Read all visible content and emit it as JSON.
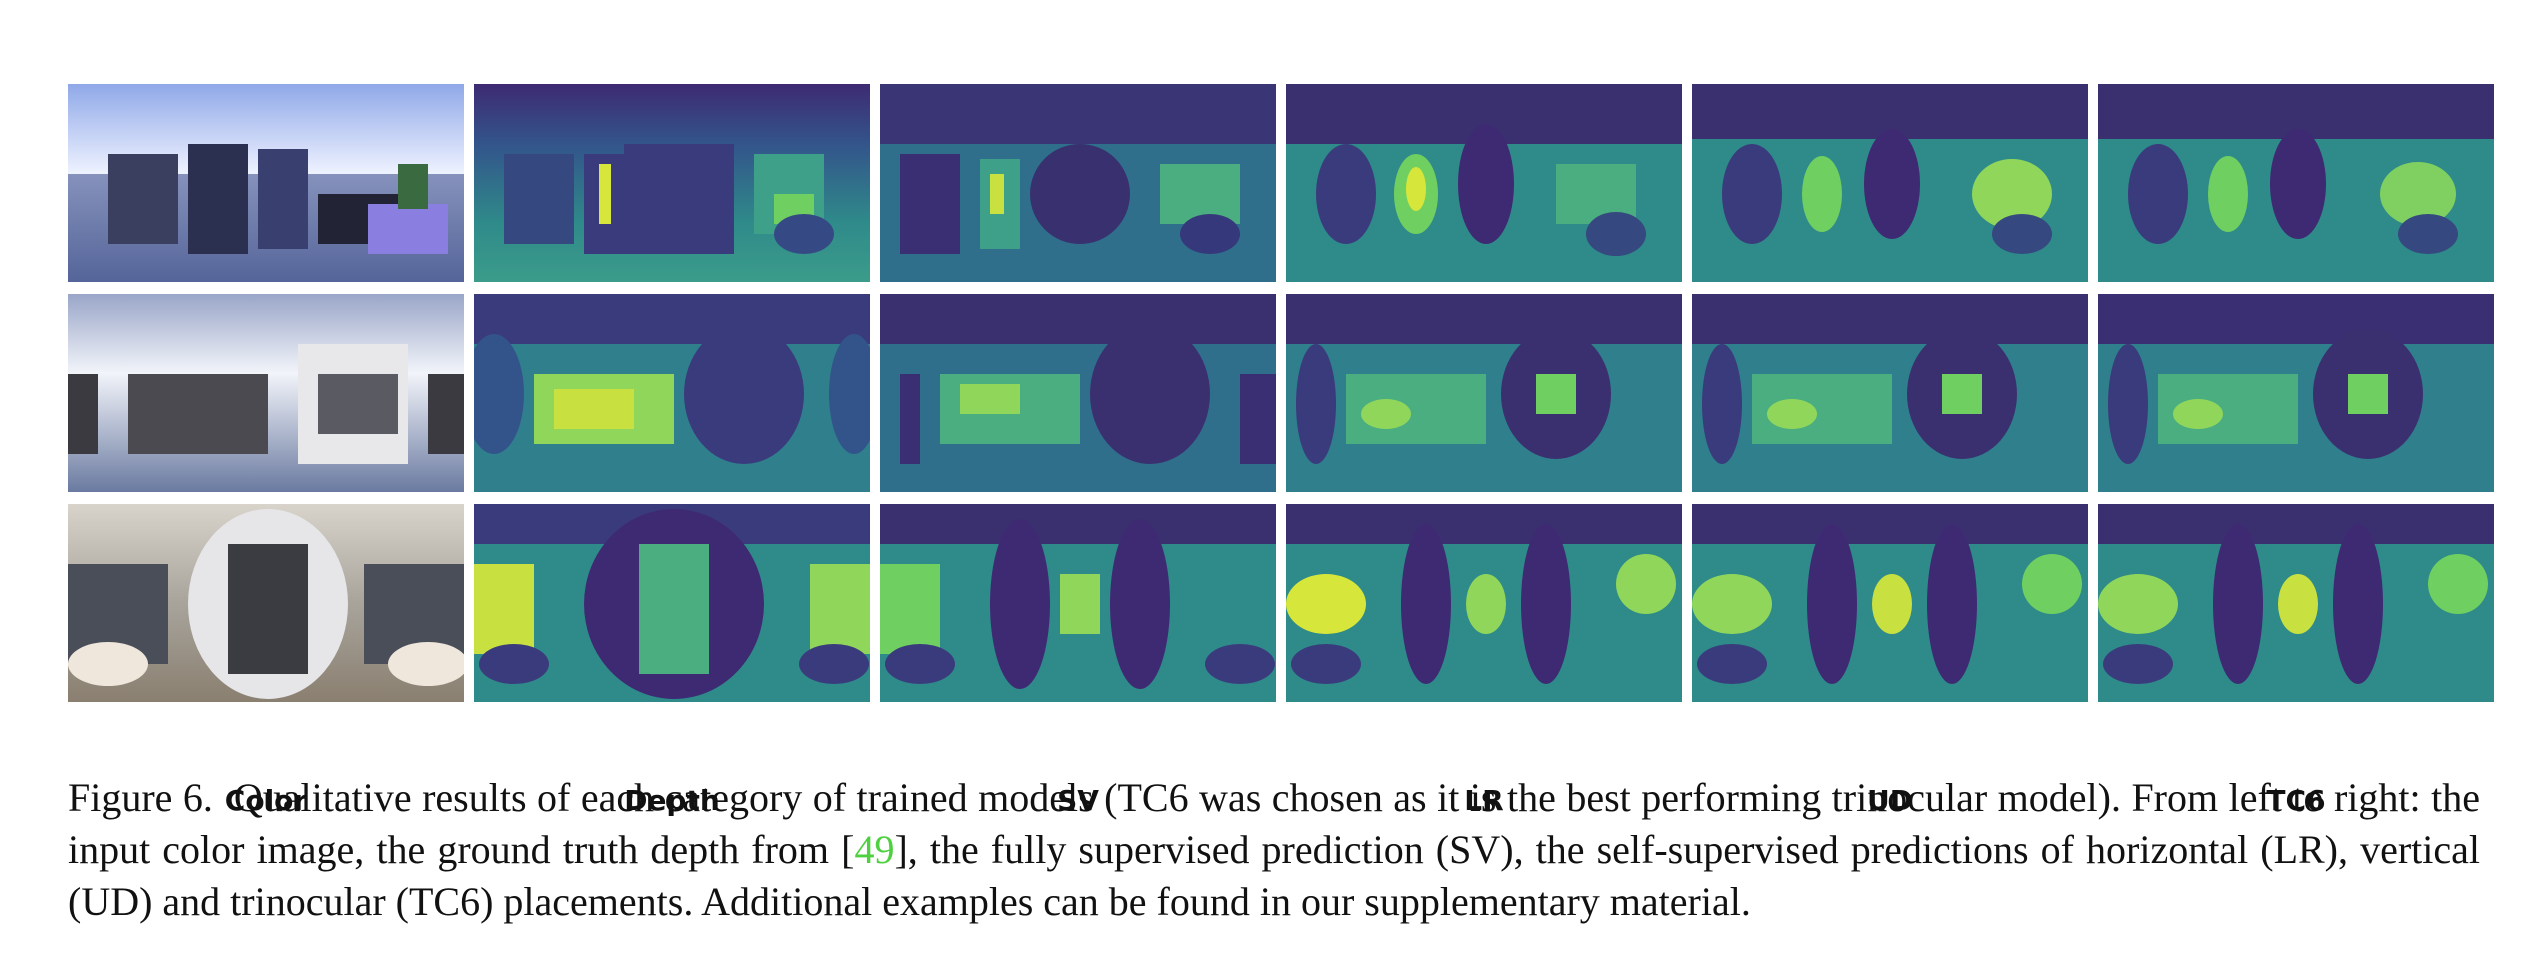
{
  "figure": {
    "columns": [
      "Color",
      "Depth",
      "SV",
      "LR",
      "UD",
      "TC6"
    ],
    "caption": {
      "label": "Figure 6.",
      "text_before_ref": "Qualitative results of each category of trained models (TC6 was chosen as it is the best performing trinocular model). From left to right: the input color image, the ground truth depth from [",
      "ref": "49",
      "text_after_ref": "], the fully supervised prediction (SV), the self-supervised predictions of horizontal (LR), vertical (UD) and trinocular (TC6) placements. Additional examples can be found in our supplementary material."
    },
    "colors": {
      "viridis_dark": "#3e2a73",
      "viridis_mid": "#2f7f8c",
      "viridis_teal": "#3fa08a",
      "viridis_green": "#6fcf60",
      "viridis_yellow": "#d7e63a",
      "ref_link": "#4fd040"
    }
  }
}
